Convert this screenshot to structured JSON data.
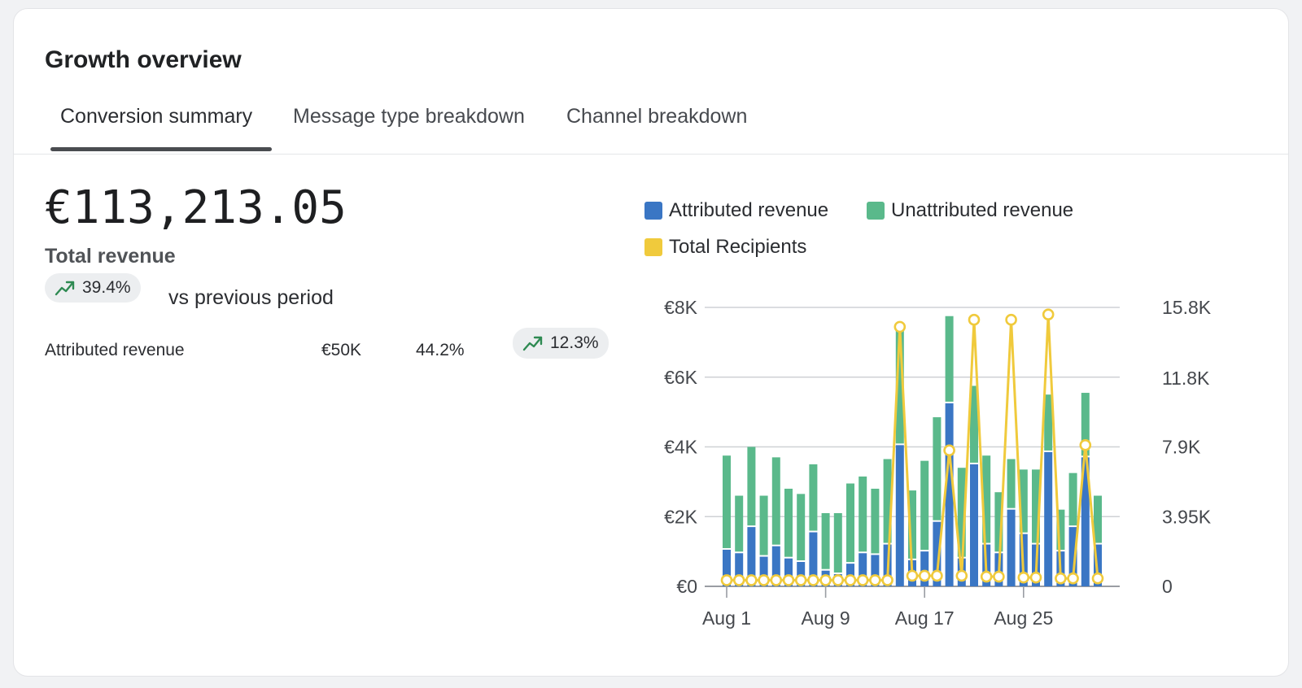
{
  "header": {
    "title": "Growth overview"
  },
  "tabs": [
    {
      "label": "Conversion summary"
    },
    {
      "label": "Message type breakdown"
    },
    {
      "label": "Channel breakdown"
    }
  ],
  "summary": {
    "total_amount": "€113,213.05",
    "total_label": "Total revenue",
    "change_pct": "39.4%",
    "change_suffix": "vs previous period"
  },
  "metric": {
    "label": "Attributed revenue",
    "value": "€50K",
    "share": "44.2%",
    "change_pct": "12.3%"
  },
  "colors": {
    "attributed": "#3a76c4",
    "unattributed": "#5ab98b",
    "recipients": "#f0ca3c",
    "trend_up": "#2e8a52"
  },
  "chart_data": {
    "type": "bar",
    "stacked": true,
    "legend_position": "top",
    "grid": true,
    "x_tick_labels": [
      "Aug 1",
      "Aug 9",
      "Aug 17",
      "Aug 25"
    ],
    "x_tick_days": [
      1,
      9,
      17,
      25
    ],
    "x": [
      1,
      2,
      3,
      4,
      5,
      6,
      7,
      8,
      9,
      10,
      11,
      12,
      13,
      14,
      15,
      16,
      17,
      18,
      19,
      20,
      21,
      22,
      23,
      24,
      25,
      26,
      27,
      28,
      29,
      30,
      31
    ],
    "y_left_ticks": [
      "€0",
      "€2K",
      "€4K",
      "€6K",
      "€8K"
    ],
    "y_left_tick_values": [
      0,
      2000,
      4000,
      6000,
      8000
    ],
    "ylim_left": [
      0,
      8000
    ],
    "y_right_ticks": [
      "0",
      "3.95K",
      "7.9K",
      "11.8K",
      "15.8K"
    ],
    "y_right_tick_values": [
      0,
      3950,
      7900,
      11800,
      15800
    ],
    "ylim_right": [
      0,
      15800
    ],
    "series": [
      {
        "name": "Attributed revenue",
        "axis": "left",
        "values": [
          1050,
          950,
          1700,
          850,
          1150,
          800,
          700,
          1550,
          450,
          350,
          650,
          950,
          900,
          1200,
          4050,
          750,
          1000,
          1850,
          5250,
          800,
          3500,
          1200,
          950,
          2200,
          1500,
          1200,
          3850,
          1000,
          1700,
          3700,
          1200
        ]
      },
      {
        "name": "Unattributed revenue",
        "axis": "left",
        "values": [
          2700,
          1650,
          2300,
          1750,
          2550,
          2000,
          1950,
          1950,
          1650,
          1750,
          2300,
          2200,
          1900,
          2450,
          3300,
          2000,
          2600,
          3000,
          2500,
          2600,
          2250,
          2550,
          1750,
          1450,
          1850,
          2150,
          1650,
          1200,
          1550,
          1850,
          1400
        ]
      },
      {
        "name": "Total Recipients",
        "axis": "right",
        "type": "line",
        "values": [
          350,
          350,
          350,
          350,
          350,
          350,
          350,
          350,
          350,
          350,
          350,
          350,
          350,
          350,
          14700,
          600,
          600,
          600,
          7700,
          600,
          15100,
          550,
          550,
          15100,
          500,
          500,
          15400,
          450,
          450,
          8000,
          450
        ]
      }
    ]
  }
}
